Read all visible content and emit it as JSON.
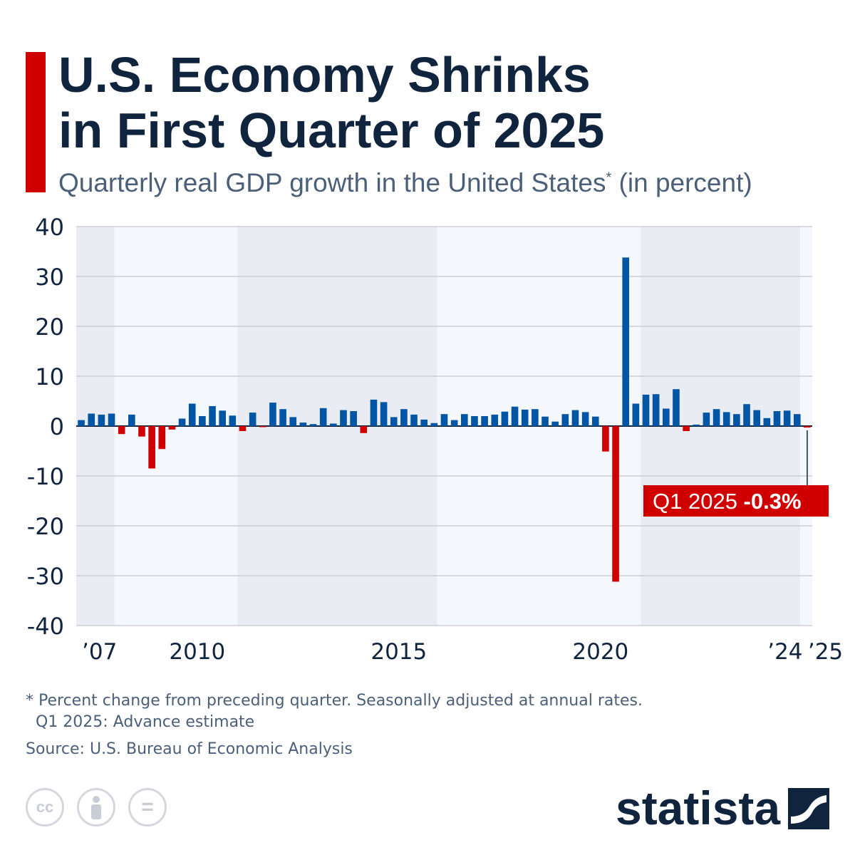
{
  "chart_data": {
    "type": "bar",
    "title": "U.S. Economy Shrinks in First Quarter of 2025",
    "subtitle": "Quarterly real GDP growth in the United States",
    "subtitle_mark": "*",
    "subtitle_suffix": "(in percent)",
    "xlabel": "",
    "ylabel": "",
    "ylim": [
      -40,
      40
    ],
    "yticks": [
      40,
      30,
      20,
      10,
      0,
      -10,
      -20,
      -30,
      -40
    ],
    "ytick_labels": [
      "40",
      "30",
      "20",
      "10",
      "0",
      "-10",
      "-20",
      "-30",
      "-40"
    ],
    "grid": true,
    "start": {
      "year": 2007,
      "quarter": 1
    },
    "xtick_labels": [
      {
        "label": "’07",
        "year": 2007
      },
      {
        "label": "2010",
        "year": 2010
      },
      {
        "label": "2015",
        "year": 2015
      },
      {
        "label": "2020",
        "year": 2020
      },
      {
        "label": "’24",
        "year": 2024
      },
      {
        "label": "’25",
        "year": 2025
      }
    ],
    "shaded_years": [
      [
        2007,
        2007
      ],
      [
        2011,
        2015
      ],
      [
        2021,
        2024
      ]
    ],
    "values": [
      1.2,
      2.5,
      2.3,
      2.5,
      -1.6,
      2.3,
      -2.1,
      -8.5,
      -4.6,
      -0.7,
      1.5,
      4.5,
      2.0,
      4.0,
      3.1,
      2.1,
      -1.0,
      2.7,
      -0.1,
      4.7,
      3.4,
      1.8,
      0.7,
      0.4,
      3.6,
      0.5,
      3.2,
      3.0,
      -1.4,
      5.3,
      4.8,
      1.8,
      3.4,
      2.3,
      1.3,
      0.6,
      2.4,
      1.2,
      2.4,
      2.0,
      2.0,
      2.3,
      2.9,
      3.9,
      3.3,
      3.4,
      1.9,
      0.9,
      2.4,
      3.2,
      2.8,
      1.9,
      -5.1,
      -31.2,
      33.8,
      4.5,
      6.3,
      6.4,
      3.5,
      7.4,
      -1.0,
      0.3,
      2.7,
      3.4,
      2.8,
      2.4,
      4.4,
      3.2,
      1.6,
      3.0,
      3.1,
      2.4,
      -0.3
    ],
    "colors": {
      "positive": "#0055a5",
      "negative": "#d10000",
      "shade": "#e9edf3",
      "grid": "#b9bec6"
    },
    "annotation": {
      "label": "Q1 2025",
      "value": "-0.3%"
    }
  },
  "footnote": {
    "line1": "* Percent change from preceding quarter. Seasonally adjusted at annual rates.",
    "line2": "Q1 2025: Advance estimate",
    "source": "Source: U.S. Bureau of Economic Analysis"
  },
  "license_icons": [
    "cc-icon",
    "attribution-icon",
    "no-derivatives-icon"
  ],
  "license_labels": {
    "cc": "cc",
    "eq": "="
  },
  "brand": "statista"
}
